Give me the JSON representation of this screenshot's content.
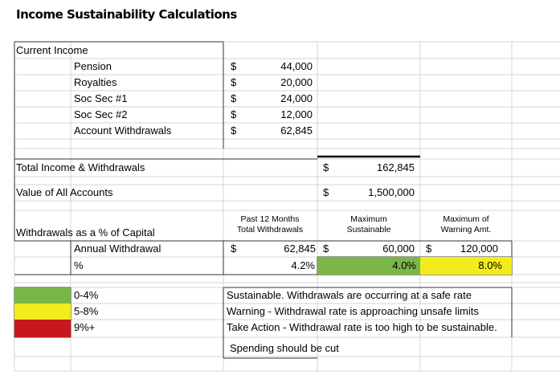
{
  "title": "Income Sustainability Calculations",
  "current_income": {
    "label": "Current Income",
    "items": [
      {
        "label": "Pension",
        "currency": "$",
        "amount": "44,000"
      },
      {
        "label": "Royalties",
        "currency": "$",
        "amount": "20,000"
      },
      {
        "label": "Soc Sec #1",
        "currency": "$",
        "amount": "24,000"
      },
      {
        "label": "Soc Sec #2",
        "currency": "$",
        "amount": "12,000"
      },
      {
        "label": "Account Withdrawals",
        "currency": "$",
        "amount": "62,845"
      }
    ]
  },
  "total_income": {
    "label": "Total Income & Withdrawals",
    "currency": "$",
    "amount": "162,845"
  },
  "value_accounts": {
    "label": "Value of All Accounts",
    "currency": "$",
    "amount": "1,500,000"
  },
  "withdrawals": {
    "label": "Withdrawals as a % of Capital",
    "headers": [
      [
        "Past 12 Months",
        "Total Withdrawals"
      ],
      [
        "Maximum",
        "Sustainable"
      ],
      [
        "Maximum of",
        "Warning Amt."
      ]
    ],
    "annual": {
      "label": "Annual Withdrawal",
      "cells": [
        {
          "currency": "$",
          "amount": "62,845"
        },
        {
          "currency": "$",
          "amount": "60,000"
        },
        {
          "currency": "$",
          "amount": "120,000"
        }
      ]
    },
    "percent": {
      "label": "%",
      "cells": [
        "4.2%",
        "4.0%",
        "8.0%"
      ]
    }
  },
  "legend": [
    {
      "range": "0-4%",
      "text": "Sustainable.  Withdrawals are occurring at a safe rate"
    },
    {
      "range": "5-8%",
      "text": "Warning - Withdrawal rate is approaching unsafe limits"
    },
    {
      "range": "9%+",
      "text": "Take Action - Withdrawal rate is too high to be sustainable."
    }
  ],
  "note": "Spending should be cut"
}
